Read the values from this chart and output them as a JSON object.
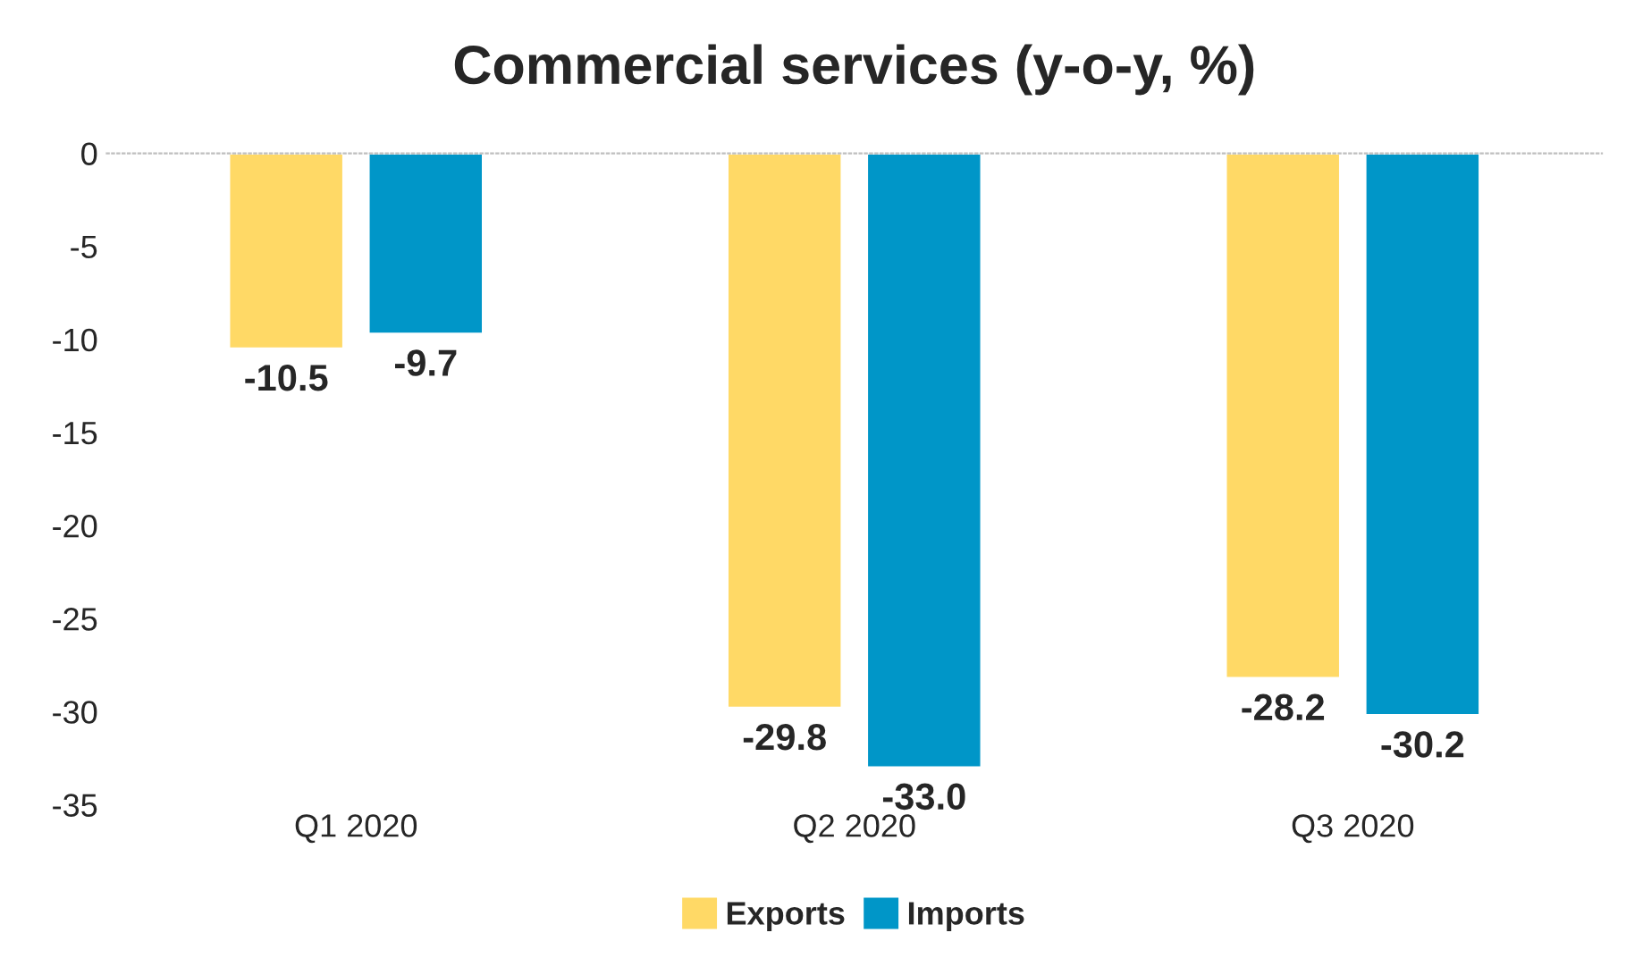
{
  "chart_data": {
    "type": "bar",
    "title": "Commercial services (y-o-y, %)",
    "categories": [
      "Q1 2020",
      "Q2 2020",
      "Q3 2020"
    ],
    "series": [
      {
        "name": "Exports",
        "color": "#ffd966",
        "values": [
          -10.5,
          -29.8,
          -28.2
        ],
        "value_labels": [
          "-10.5",
          "-29.8",
          "-28.2"
        ]
      },
      {
        "name": "Imports",
        "color": "#0096c8",
        "values": [
          -9.7,
          -33.0,
          -30.2
        ],
        "value_labels": [
          "-9.7",
          "-33.0",
          "-30.2"
        ]
      }
    ],
    "ylim": [
      -35,
      0
    ],
    "yticks": [
      0,
      -5,
      -10,
      -15,
      -20,
      -25,
      -30,
      -35
    ],
    "grid": false,
    "legend": "bottom"
  }
}
